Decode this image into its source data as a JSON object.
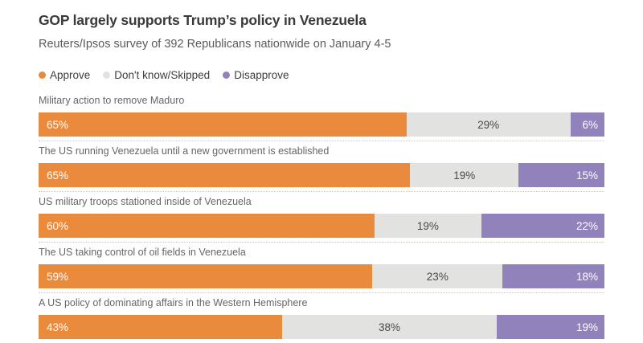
{
  "header": {
    "title": "GOP largely supports Trump’s policy in Venezuela",
    "subtitle": "Reuters/Ipsos survey of 392 Republicans nationwide on January 4-5"
  },
  "colors": {
    "approve": "#ea8a3c",
    "dont_know": "#e2e2e0",
    "disapprove": "#9182bc",
    "title_text": "#3a3a3a",
    "subtitle_text": "#5a5a5a",
    "category_text": "#666666",
    "label_on_color": "#ffffff",
    "label_on_gray": "#4a4a4a",
    "separator": "#c9c9c7"
  },
  "legend": {
    "items": [
      {
        "label": "Approve",
        "color_key": "approve"
      },
      {
        "label": "Don't know/Skipped",
        "color_key": "dont_know"
      },
      {
        "label": "Disapprove",
        "color_key": "disapprove"
      }
    ]
  },
  "chart_data": {
    "type": "bar",
    "orientation": "horizontal",
    "stacked": true,
    "unit": "%",
    "title": "GOP largely supports Trump’s policy in Venezuela",
    "subtitle": "Reuters/Ipsos survey of 392 Republicans nationwide on January 4-5",
    "legend_position": "top",
    "grid": false,
    "xlim": [
      0,
      100
    ],
    "categories": [
      "Military action to remove Maduro",
      "The US running Venezuela until a new government is established",
      "US military troops stationed inside of Venezuela",
      "The US taking control of oil fields in Venezuela",
      "A US policy of dominating affairs in the Western Hemisphere"
    ],
    "series": [
      {
        "name": "Approve",
        "color_key": "approve",
        "values": [
          65,
          65,
          60,
          59,
          43
        ]
      },
      {
        "name": "Don't know/Skipped",
        "color_key": "dont_know",
        "values": [
          29,
          19,
          19,
          23,
          38
        ]
      },
      {
        "name": "Disapprove",
        "color_key": "disapprove",
        "values": [
          6,
          15,
          22,
          18,
          19
        ]
      }
    ]
  }
}
